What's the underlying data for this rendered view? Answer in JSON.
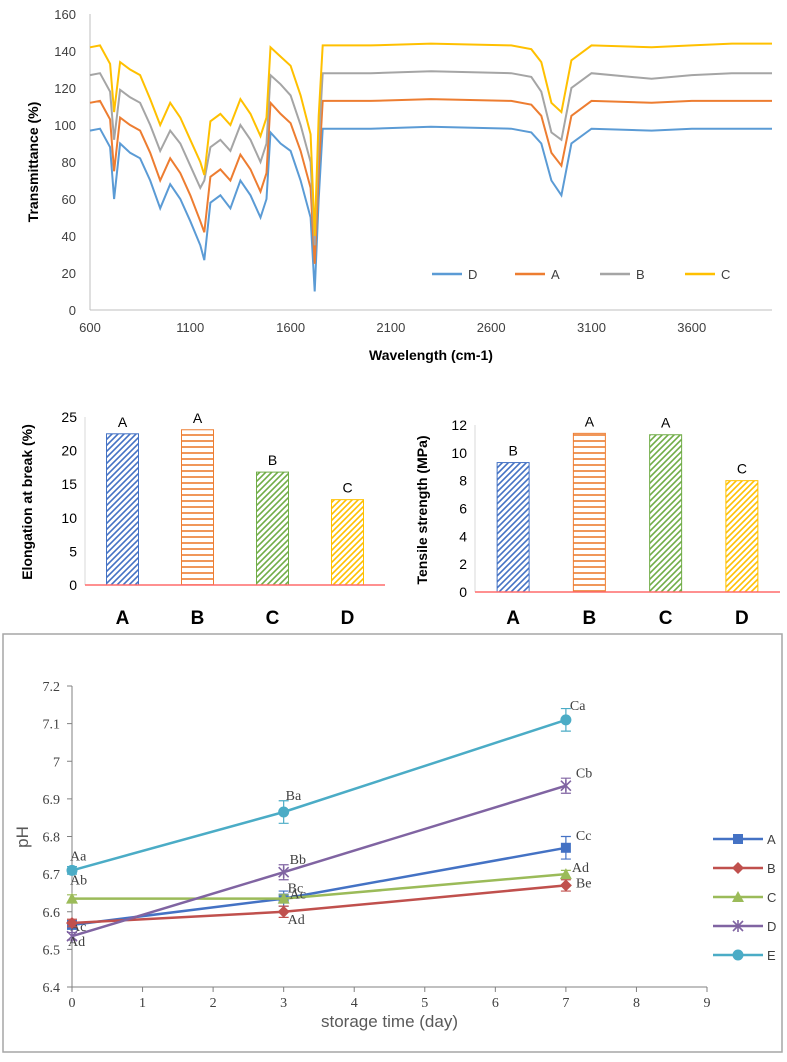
{
  "chart_data": [
    {
      "type": "line",
      "id": "ftir",
      "title": "",
      "xlabel": "Wavelength (cm-1)",
      "ylabel": "Transmittance (%)",
      "xlim": [
        600,
        4000
      ],
      "ylim": [
        0,
        160
      ],
      "xticks": [
        600,
        1100,
        1600,
        2100,
        2600,
        3100,
        3600
      ],
      "yticks": [
        0,
        20,
        40,
        60,
        80,
        100,
        120,
        140,
        160
      ],
      "legend_position": "bottom-right",
      "series": [
        {
          "name": "D",
          "color": "#5b9bd5",
          "x": [
            600,
            650,
            700,
            720,
            750,
            800,
            850,
            900,
            950,
            1000,
            1050,
            1100,
            1150,
            1170,
            1200,
            1250,
            1300,
            1350,
            1400,
            1450,
            1480,
            1500,
            1550,
            1600,
            1650,
            1700,
            1720,
            1740,
            1760,
            2000,
            2300,
            2700,
            2800,
            2850,
            2900,
            2950,
            3000,
            3100,
            3400,
            3600,
            3800,
            4000
          ],
          "y": [
            97,
            98,
            88,
            60,
            90,
            85,
            82,
            70,
            55,
            68,
            60,
            48,
            35,
            27,
            58,
            62,
            55,
            70,
            62,
            50,
            60,
            96,
            90,
            86,
            70,
            50,
            10,
            60,
            98,
            98,
            99,
            98,
            96,
            90,
            70,
            62,
            90,
            98,
            97,
            98,
            98,
            98
          ]
        },
        {
          "name": "A",
          "color": "#ed7d31",
          "x": [
            600,
            650,
            700,
            720,
            750,
            800,
            850,
            900,
            950,
            1000,
            1050,
            1100,
            1150,
            1170,
            1200,
            1250,
            1300,
            1350,
            1400,
            1450,
            1480,
            1500,
            1550,
            1600,
            1650,
            1700,
            1720,
            1740,
            1760,
            2000,
            2300,
            2700,
            2800,
            2850,
            2900,
            2950,
            3000,
            3100,
            3400,
            3600,
            3800,
            4000
          ],
          "y": [
            112,
            113,
            103,
            75,
            104,
            100,
            97,
            85,
            70,
            82,
            74,
            62,
            48,
            42,
            72,
            76,
            70,
            84,
            76,
            64,
            74,
            112,
            106,
            101,
            86,
            66,
            25,
            75,
            113,
            113,
            114,
            113,
            111,
            105,
            85,
            78,
            105,
            113,
            112,
            113,
            113,
            113
          ]
        },
        {
          "name": "B",
          "color": "#a5a5a5",
          "x": [
            600,
            650,
            700,
            720,
            750,
            800,
            850,
            900,
            950,
            1000,
            1050,
            1100,
            1150,
            1170,
            1200,
            1250,
            1300,
            1350,
            1400,
            1450,
            1480,
            1500,
            1550,
            1600,
            1650,
            1700,
            1720,
            1740,
            1760,
            2000,
            2300,
            2700,
            2800,
            2850,
            2900,
            2950,
            3000,
            3100,
            3400,
            3600,
            3800,
            4000
          ],
          "y": [
            127,
            128,
            118,
            92,
            119,
            115,
            112,
            100,
            86,
            97,
            90,
            78,
            66,
            70,
            88,
            92,
            86,
            100,
            92,
            80,
            90,
            127,
            122,
            116,
            100,
            80,
            35,
            90,
            128,
            128,
            129,
            128,
            126,
            118,
            96,
            92,
            120,
            128,
            125,
            127,
            128,
            128
          ]
        },
        {
          "name": "C",
          "color": "#ffc000",
          "x": [
            600,
            650,
            700,
            720,
            750,
            800,
            850,
            900,
            950,
            1000,
            1050,
            1100,
            1150,
            1170,
            1200,
            1250,
            1300,
            1350,
            1400,
            1450,
            1480,
            1500,
            1550,
            1600,
            1650,
            1700,
            1720,
            1740,
            1760,
            2000,
            2300,
            2700,
            2800,
            2850,
            2900,
            2950,
            3000,
            3100,
            3400,
            3600,
            3800,
            4000
          ],
          "y": [
            142,
            143,
            133,
            107,
            134,
            130,
            127,
            114,
            100,
            112,
            104,
            92,
            80,
            73,
            102,
            106,
            100,
            114,
            106,
            94,
            104,
            142,
            137,
            132,
            116,
            95,
            40,
            105,
            143,
            143,
            144,
            143,
            141,
            134,
            112,
            107,
            135,
            143,
            142,
            143,
            144,
            144
          ]
        }
      ]
    },
    {
      "type": "bar",
      "id": "elongation",
      "title": "",
      "xlabel": "",
      "ylabel": "Elongation at break (%)",
      "ylim": [
        0,
        25
      ],
      "yticks": [
        0,
        5,
        10,
        15,
        20,
        25
      ],
      "categories": [
        "A",
        "B",
        "C",
        "D"
      ],
      "values": [
        22.5,
        23.1,
        16.8,
        12.7
      ],
      "letters": [
        "A",
        "A",
        "B",
        "C"
      ],
      "colors": [
        "#4472c4",
        "#ed7d31",
        "#70ad47",
        "#ffc000"
      ],
      "patterns": [
        "diagonal",
        "horizontal",
        "diagonal",
        "diagonal"
      ]
    },
    {
      "type": "bar",
      "id": "tensile",
      "title": "",
      "xlabel": "",
      "ylabel": "Tensile strength (MPa)",
      "ylim": [
        0,
        12
      ],
      "yticks": [
        0,
        2,
        4,
        6,
        8,
        10,
        12
      ],
      "categories": [
        "A",
        "B",
        "C",
        "D"
      ],
      "values": [
        9.3,
        11.4,
        11.3,
        8.0
      ],
      "letters": [
        "B",
        "A",
        "A",
        "C"
      ],
      "colors": [
        "#4472c4",
        "#ed7d31",
        "#70ad47",
        "#ffc000"
      ],
      "patterns": [
        "diagonal",
        "horizontal",
        "diagonal",
        "diagonal"
      ]
    },
    {
      "type": "line",
      "id": "ph",
      "title": "",
      "xlabel": "storage time (day)",
      "ylabel": "pH",
      "xlim": [
        0,
        9
      ],
      "ylim": [
        6.4,
        7.2
      ],
      "xticks": [
        0,
        1,
        2,
        3,
        4,
        5,
        6,
        7,
        8,
        9
      ],
      "yticks": [
        "6.4",
        "6.5",
        "6.6",
        "6.7",
        "6.8",
        "6.9",
        "7",
        "7.1",
        "7.2"
      ],
      "legend_position": "right",
      "x": [
        0,
        3,
        7
      ],
      "series": [
        {
          "name": "A",
          "color": "#4472c4",
          "marker": "square",
          "values": [
            6.565,
            6.635,
            6.77
          ],
          "errors": [
            0.01,
            0.02,
            0.03
          ],
          "labels": [
            "Ac",
            "Bc",
            "Cc"
          ]
        },
        {
          "name": "B",
          "color": "#c0504d",
          "marker": "diamond",
          "values": [
            6.57,
            6.6,
            6.67
          ],
          "errors": [
            0.01,
            0.015,
            0.015
          ],
          "labels": [
            "",
            "Ad",
            "Be"
          ]
        },
        {
          "name": "C",
          "color": "#9bbb59",
          "marker": "triangle",
          "values": [
            6.635,
            6.635,
            6.7
          ],
          "errors": [
            0.01,
            0.01,
            0.01
          ],
          "labels": [
            "Ab",
            "Ac",
            "Ad"
          ]
        },
        {
          "name": "D",
          "color": "#8064a2",
          "marker": "star",
          "values": [
            6.535,
            6.705,
            6.935
          ],
          "errors": [
            0.01,
            0.02,
            0.02
          ],
          "labels": [
            "Ad",
            "Bb",
            "Cb"
          ]
        },
        {
          "name": "E",
          "color": "#4bacc6",
          "marker": "circle",
          "values": [
            6.71,
            6.865,
            7.11
          ],
          "errors": [
            0.01,
            0.03,
            0.03
          ],
          "labels": [
            "Aa",
            "Ba",
            "Ca"
          ]
        }
      ]
    }
  ]
}
